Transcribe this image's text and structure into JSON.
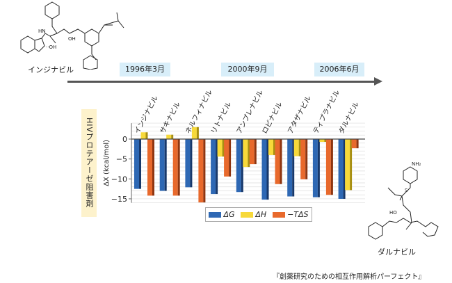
{
  "timeline": {
    "dates": [
      "1996年3月",
      "2000年9月",
      "2006年6月"
    ]
  },
  "molecules": {
    "top_left": "インジナビル",
    "bottom_right": "ダルナビル"
  },
  "vertical_label": "HIVプロテアーゼ阻害剤",
  "citation": "『創薬研究のための相互作用解析パーフェクト』",
  "colors": {
    "dG": "#2e68b4",
    "dH": "#f7d93a",
    "TdS": "#e8692c"
  },
  "chart_data": {
    "type": "bar",
    "ylabel": "ΔX (kcal/mol)",
    "ylim": [
      -16,
      4
    ],
    "yticks": [
      0,
      -5,
      -10,
      -15
    ],
    "ytick_labels": [
      "0",
      "−5",
      "−10",
      "−15"
    ],
    "grid": true,
    "legend_position": "bottom",
    "categories": [
      "インジナビル",
      "サキナビル",
      "ネルフィナビル",
      "リトナビル",
      "アンプレナビル",
      "ロピナビル",
      "アタザナビル",
      "ティプラナビル",
      "ダルナビル"
    ],
    "series": [
      {
        "name": "ΔG",
        "values": [
          -12.5,
          -13.0,
          -12.1,
          -13.8,
          -13.3,
          -15.2,
          -14.4,
          -14.6,
          -15.0
        ]
      },
      {
        "name": "ΔH",
        "values": [
          1.7,
          1.1,
          3.0,
          -4.4,
          -7.0,
          -4.0,
          -4.3,
          -0.7,
          -12.8
        ]
      },
      {
        "name": "−TΔS",
        "values": [
          -14.2,
          -14.2,
          -15.9,
          -9.4,
          -6.3,
          -11.3,
          -10.1,
          -14.0,
          -2.3
        ]
      }
    ]
  }
}
